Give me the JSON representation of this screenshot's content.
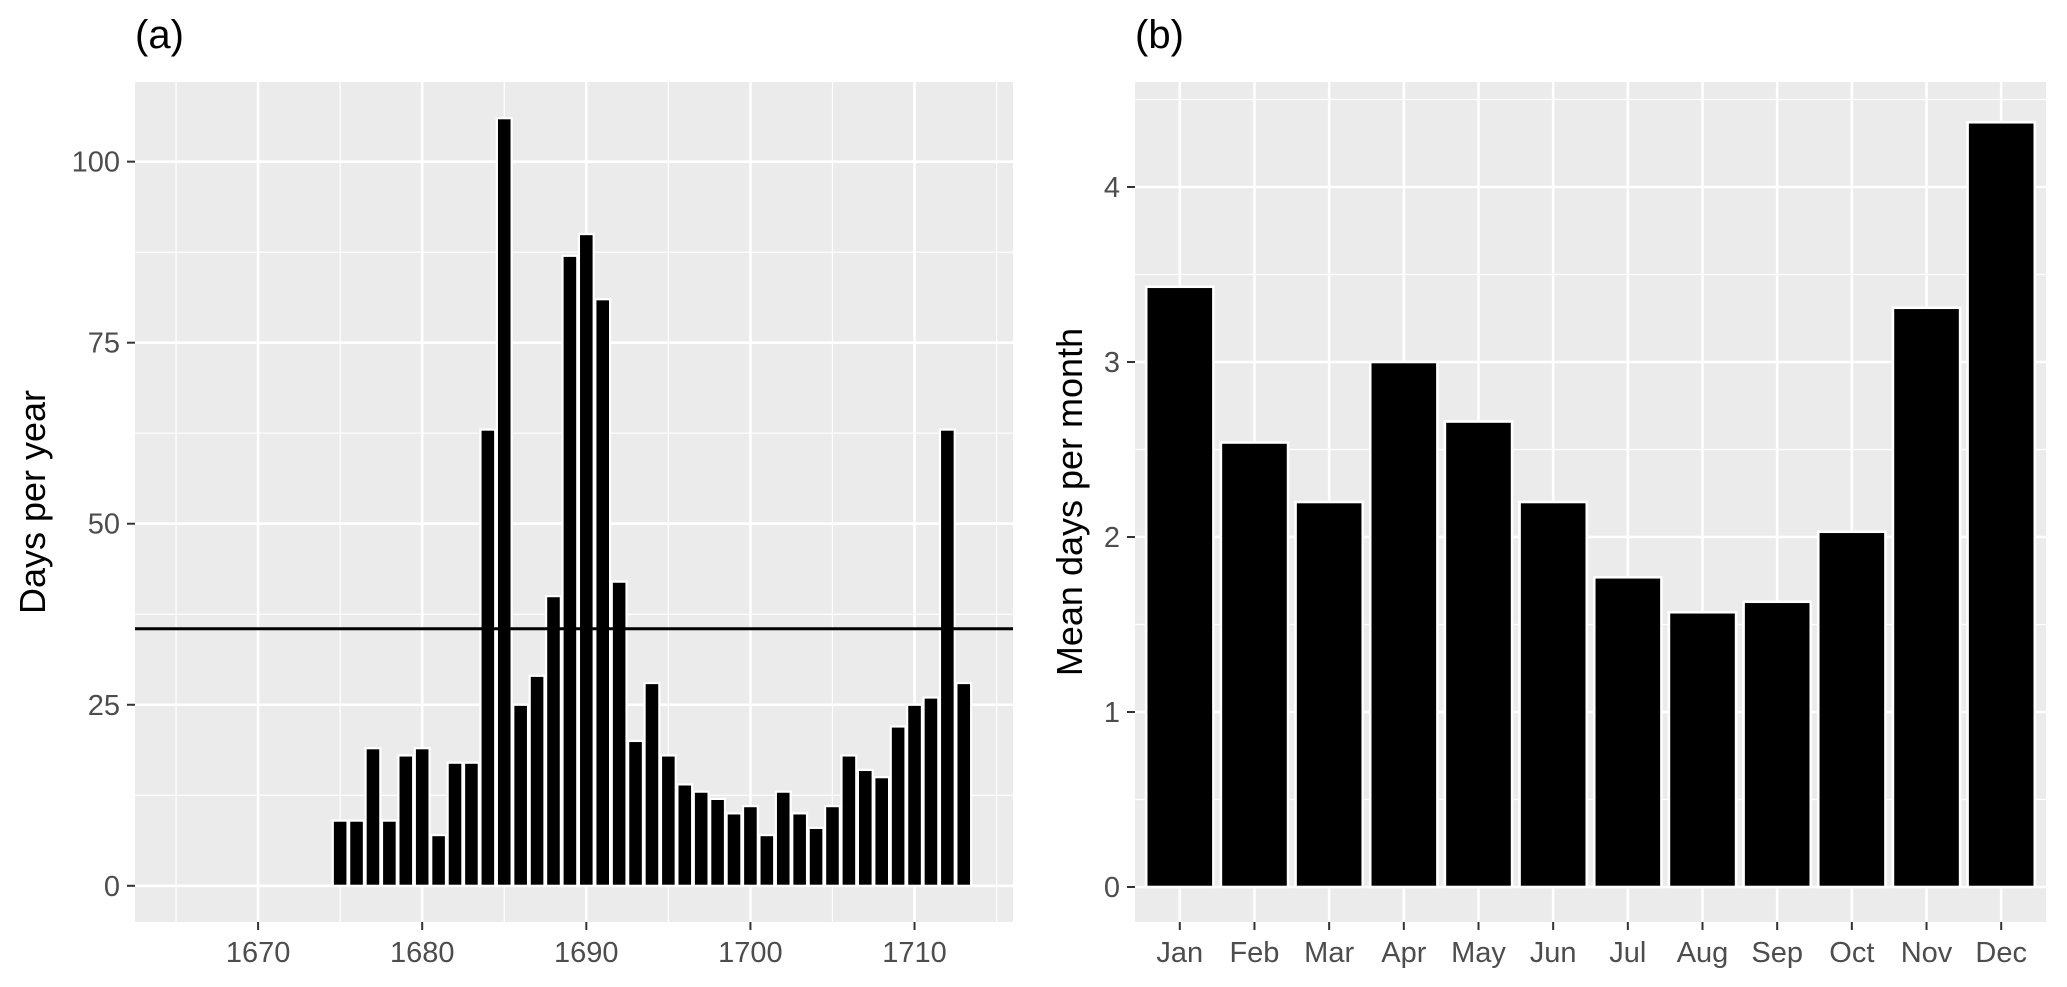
{
  "chart_data": [
    {
      "panel_label": "(a)",
      "type": "bar",
      "title": "",
      "xlabel": "",
      "ylabel": "Days per year",
      "xlim": [
        1662.5,
        1716
      ],
      "ylim": [
        -5,
        111
      ],
      "x_ticks": [
        1670,
        1680,
        1690,
        1700,
        1710
      ],
      "y_ticks": [
        0,
        25,
        50,
        75,
        100
      ],
      "x": [
        1675,
        1676,
        1677,
        1678,
        1679,
        1680,
        1681,
        1682,
        1683,
        1684,
        1685,
        1686,
        1687,
        1688,
        1689,
        1690,
        1691,
        1692,
        1693,
        1694,
        1695,
        1696,
        1697,
        1698,
        1699,
        1700,
        1701,
        1702,
        1703,
        1704,
        1705,
        1706,
        1707,
        1708,
        1709,
        1710,
        1711,
        1712,
        1713
      ],
      "values": [
        9,
        9,
        19,
        9,
        18,
        19,
        7,
        17,
        17,
        63,
        106,
        25,
        29,
        40,
        87,
        90,
        81,
        42,
        20,
        28,
        18,
        14,
        13,
        12,
        10,
        11,
        7,
        13,
        10,
        8,
        11,
        18,
        16,
        15,
        22,
        25,
        26,
        63,
        28
      ],
      "reference_line_y": 35.5,
      "grid": true,
      "bar_color": "#000000",
      "bar_outline_color": "#ffffff"
    },
    {
      "panel_label": "(b)",
      "type": "bar",
      "title": "",
      "xlabel": "",
      "ylabel": "Mean days per month",
      "ylim": [
        -0.2,
        4.6
      ],
      "y_ticks": [
        0,
        1,
        2,
        3,
        4
      ],
      "categories": [
        "Jan",
        "Feb",
        "Mar",
        "Apr",
        "May",
        "Jun",
        "Jul",
        "Aug",
        "Sep",
        "Oct",
        "Nov",
        "Dec"
      ],
      "values": [
        3.43,
        2.54,
        2.2,
        3.0,
        2.66,
        2.2,
        1.77,
        1.57,
        1.63,
        2.03,
        3.31,
        4.37
      ],
      "grid": true,
      "bar_color": "#000000",
      "bar_outline_color": "#ffffff"
    }
  ],
  "colors": {
    "panel_background": "#ebebeb",
    "gridline": "#ffffff",
    "bar": "#000000",
    "tick_label": "#4d4d4d"
  }
}
